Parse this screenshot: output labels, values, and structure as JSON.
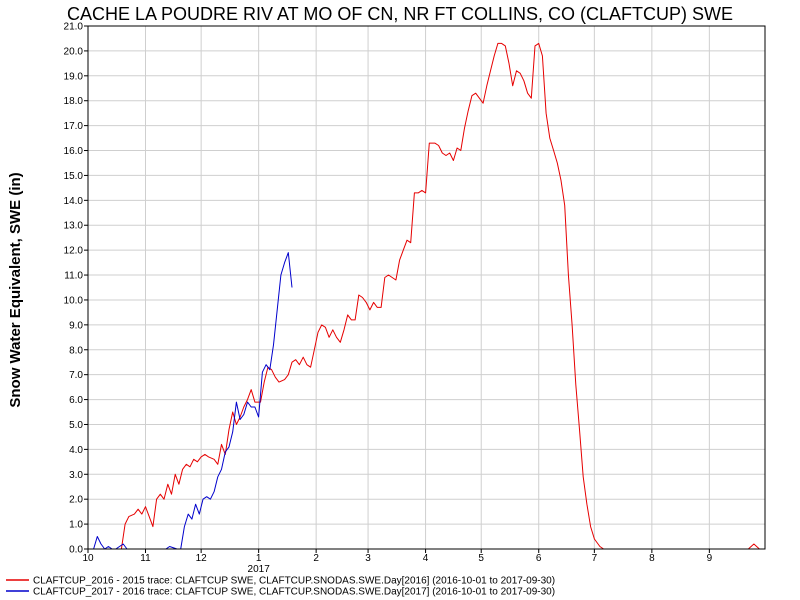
{
  "chart_data": {
    "type": "line",
    "title": "CACHE LA POUDRE RIV AT MO OF CN, NR FT COLLINS, CO (CLAFTCUP) SWE",
    "ylabel": "Snow Water Equivalent, SWE (in)",
    "xlabel": "",
    "xlim": [
      "2016-10-01",
      "2017-09-30"
    ],
    "ylim": [
      0,
      21
    ],
    "y_ticks": [
      "0.0",
      "1.0",
      "2.0",
      "3.0",
      "4.0",
      "5.0",
      "6.0",
      "7.0",
      "8.0",
      "9.0",
      "10.0",
      "11.0",
      "12.0",
      "13.0",
      "14.0",
      "15.0",
      "16.0",
      "17.0",
      "18.0",
      "19.0",
      "20.0",
      "21.0"
    ],
    "x_ticks": [
      {
        "date": "2016-10-01",
        "label": "10"
      },
      {
        "date": "2016-11-01",
        "label": "11"
      },
      {
        "date": "2016-12-01",
        "label": "12"
      },
      {
        "date": "2017-01-01",
        "label": "1"
      },
      {
        "date": "2017-02-01",
        "label": "2"
      },
      {
        "date": "2017-03-01",
        "label": "3"
      },
      {
        "date": "2017-04-01",
        "label": "4"
      },
      {
        "date": "2017-05-01",
        "label": "5"
      },
      {
        "date": "2017-06-01",
        "label": "6"
      },
      {
        "date": "2017-07-01",
        "label": "7"
      },
      {
        "date": "2017-08-01",
        "label": "8"
      },
      {
        "date": "2017-09-01",
        "label": "9"
      }
    ],
    "year_label": "2017",
    "grid": true,
    "legend_position": "bottom-left",
    "series": [
      {
        "name": "CLAFTCUP_2016 - 2015 trace: CLAFTCUP SWE, CLAFTCUP.SNODAS.SWE.Day[2016] (2016-10-01 to 2017-09-30)",
        "color": "#e60000",
        "points": [
          [
            "2016-10-01",
            0
          ],
          [
            "2016-10-19",
            0
          ],
          [
            "2016-10-21",
            1.0
          ],
          [
            "2016-10-23",
            1.3
          ],
          [
            "2016-10-26",
            1.4
          ],
          [
            "2016-10-28",
            1.6
          ],
          [
            "2016-10-30",
            1.4
          ],
          [
            "2016-11-01",
            1.7
          ],
          [
            "2016-11-03",
            1.3
          ],
          [
            "2016-11-05",
            0.9
          ],
          [
            "2016-11-07",
            2.0
          ],
          [
            "2016-11-09",
            2.2
          ],
          [
            "2016-11-11",
            2.0
          ],
          [
            "2016-11-13",
            2.6
          ],
          [
            "2016-11-15",
            2.2
          ],
          [
            "2016-11-17",
            3.0
          ],
          [
            "2016-11-19",
            2.6
          ],
          [
            "2016-11-21",
            3.2
          ],
          [
            "2016-11-23",
            3.4
          ],
          [
            "2016-11-25",
            3.3
          ],
          [
            "2016-11-27",
            3.6
          ],
          [
            "2016-11-29",
            3.5
          ],
          [
            "2016-12-01",
            3.7
          ],
          [
            "2016-12-03",
            3.8
          ],
          [
            "2016-12-05",
            3.7
          ],
          [
            "2016-12-08",
            3.6
          ],
          [
            "2016-12-10",
            3.4
          ],
          [
            "2016-12-12",
            4.2
          ],
          [
            "2016-12-14",
            3.8
          ],
          [
            "2016-12-16",
            4.8
          ],
          [
            "2016-12-18",
            5.5
          ],
          [
            "2016-12-20",
            5.0
          ],
          [
            "2016-12-22",
            5.3
          ],
          [
            "2016-12-24",
            5.7
          ],
          [
            "2016-12-26",
            6.0
          ],
          [
            "2016-12-28",
            6.4
          ],
          [
            "2016-12-30",
            5.9
          ],
          [
            "2017-01-02",
            5.9
          ],
          [
            "2017-01-04",
            6.7
          ],
          [
            "2017-01-06",
            7.3
          ],
          [
            "2017-01-08",
            7.2
          ],
          [
            "2017-01-10",
            6.9
          ],
          [
            "2017-01-12",
            6.7
          ],
          [
            "2017-01-15",
            6.8
          ],
          [
            "2017-01-17",
            7.0
          ],
          [
            "2017-01-19",
            7.5
          ],
          [
            "2017-01-21",
            7.6
          ],
          [
            "2017-01-23",
            7.4
          ],
          [
            "2017-01-25",
            7.7
          ],
          [
            "2017-01-27",
            7.4
          ],
          [
            "2017-01-29",
            7.3
          ],
          [
            "2017-01-31",
            8.0
          ],
          [
            "2017-02-02",
            8.7
          ],
          [
            "2017-02-04",
            9.0
          ],
          [
            "2017-02-06",
            8.9
          ],
          [
            "2017-02-08",
            8.5
          ],
          [
            "2017-02-10",
            8.8
          ],
          [
            "2017-02-12",
            8.5
          ],
          [
            "2017-02-14",
            8.3
          ],
          [
            "2017-02-16",
            8.8
          ],
          [
            "2017-02-18",
            9.4
          ],
          [
            "2017-02-20",
            9.2
          ],
          [
            "2017-02-22",
            9.2
          ],
          [
            "2017-02-24",
            10.2
          ],
          [
            "2017-02-26",
            10.1
          ],
          [
            "2017-02-28",
            9.9
          ],
          [
            "2017-03-02",
            9.6
          ],
          [
            "2017-03-04",
            9.9
          ],
          [
            "2017-03-06",
            9.7
          ],
          [
            "2017-03-08",
            9.7
          ],
          [
            "2017-03-10",
            10.9
          ],
          [
            "2017-03-12",
            11.0
          ],
          [
            "2017-03-14",
            10.9
          ],
          [
            "2017-03-16",
            10.8
          ],
          [
            "2017-03-18",
            11.6
          ],
          [
            "2017-03-20",
            12.0
          ],
          [
            "2017-03-22",
            12.4
          ],
          [
            "2017-03-24",
            12.3
          ],
          [
            "2017-03-26",
            14.3
          ],
          [
            "2017-03-28",
            14.3
          ],
          [
            "2017-03-30",
            14.4
          ],
          [
            "2017-04-01",
            14.3
          ],
          [
            "2017-04-03",
            16.3
          ],
          [
            "2017-04-06",
            16.3
          ],
          [
            "2017-04-08",
            16.2
          ],
          [
            "2017-04-10",
            15.9
          ],
          [
            "2017-04-12",
            15.8
          ],
          [
            "2017-04-14",
            15.9
          ],
          [
            "2017-04-16",
            15.6
          ],
          [
            "2017-04-18",
            16.1
          ],
          [
            "2017-04-20",
            16.0
          ],
          [
            "2017-04-22",
            16.9
          ],
          [
            "2017-04-24",
            17.6
          ],
          [
            "2017-04-26",
            18.2
          ],
          [
            "2017-04-28",
            18.3
          ],
          [
            "2017-04-30",
            18.1
          ],
          [
            "2017-05-02",
            17.9
          ],
          [
            "2017-05-04",
            18.6
          ],
          [
            "2017-05-06",
            19.2
          ],
          [
            "2017-05-08",
            19.8
          ],
          [
            "2017-05-10",
            20.3
          ],
          [
            "2017-05-12",
            20.3
          ],
          [
            "2017-05-14",
            20.2
          ],
          [
            "2017-05-16",
            19.5
          ],
          [
            "2017-05-18",
            18.6
          ],
          [
            "2017-05-20",
            19.2
          ],
          [
            "2017-05-22",
            19.1
          ],
          [
            "2017-05-24",
            18.8
          ],
          [
            "2017-05-26",
            18.3
          ],
          [
            "2017-05-28",
            18.1
          ],
          [
            "2017-05-30",
            20.2
          ],
          [
            "2017-06-01",
            20.3
          ],
          [
            "2017-06-03",
            19.8
          ],
          [
            "2017-06-05",
            17.5
          ],
          [
            "2017-06-07",
            16.5
          ],
          [
            "2017-06-09",
            16.0
          ],
          [
            "2017-06-11",
            15.5
          ],
          [
            "2017-06-13",
            14.8
          ],
          [
            "2017-06-15",
            13.8
          ],
          [
            "2017-06-17",
            11.0
          ],
          [
            "2017-06-19",
            9.0
          ],
          [
            "2017-06-21",
            6.6
          ],
          [
            "2017-06-23",
            4.8
          ],
          [
            "2017-06-25",
            2.9
          ],
          [
            "2017-06-27",
            1.8
          ],
          [
            "2017-06-29",
            0.9
          ],
          [
            "2017-07-01",
            0.4
          ],
          [
            "2017-07-04",
            0.1
          ],
          [
            "2017-07-06",
            0
          ],
          [
            "2017-09-22",
            0
          ],
          [
            "2017-09-25",
            0.2
          ],
          [
            "2017-09-28",
            0
          ]
        ]
      },
      {
        "name": "CLAFTCUP_2017 - 2016 trace: CLAFTCUP SWE, CLAFTCUP.SNODAS.SWE.Day[2017] (2016-10-01 to 2017-09-30)",
        "color": "#0000cc",
        "points": [
          [
            "2016-10-01",
            0
          ],
          [
            "2016-10-04",
            0
          ],
          [
            "2016-10-06",
            0.5
          ],
          [
            "2016-10-08",
            0.2
          ],
          [
            "2016-10-10",
            0
          ],
          [
            "2016-10-12",
            0.1
          ],
          [
            "2016-10-14",
            0
          ],
          [
            "2016-10-16",
            0
          ],
          [
            "2016-10-18",
            0.1
          ],
          [
            "2016-10-20",
            0.2
          ],
          [
            "2016-10-22",
            0
          ],
          [
            "2016-11-12",
            0
          ],
          [
            "2016-11-14",
            0.1
          ],
          [
            "2016-11-18",
            0
          ],
          [
            "2016-11-20",
            0
          ],
          [
            "2016-11-22",
            0.9
          ],
          [
            "2016-11-24",
            1.4
          ],
          [
            "2016-11-26",
            1.2
          ],
          [
            "2016-11-28",
            1.8
          ],
          [
            "2016-11-30",
            1.4
          ],
          [
            "2016-12-02",
            2.0
          ],
          [
            "2016-12-04",
            2.1
          ],
          [
            "2016-12-06",
            2.0
          ],
          [
            "2016-12-08",
            2.3
          ],
          [
            "2016-12-10",
            2.9
          ],
          [
            "2016-12-12",
            3.2
          ],
          [
            "2016-12-14",
            3.9
          ],
          [
            "2016-12-16",
            4.1
          ],
          [
            "2016-12-18",
            4.7
          ],
          [
            "2016-12-20",
            5.9
          ],
          [
            "2016-12-22",
            5.2
          ],
          [
            "2016-12-24",
            5.4
          ],
          [
            "2016-12-26",
            5.9
          ],
          [
            "2016-12-28",
            5.7
          ],
          [
            "2016-12-30",
            5.7
          ],
          [
            "2017-01-01",
            5.3
          ],
          [
            "2017-01-03",
            7.1
          ],
          [
            "2017-01-05",
            7.4
          ],
          [
            "2017-01-07",
            7.2
          ],
          [
            "2017-01-09",
            8.2
          ],
          [
            "2017-01-11",
            9.6
          ],
          [
            "2017-01-13",
            11.0
          ],
          [
            "2017-01-15",
            11.5
          ],
          [
            "2017-01-17",
            11.9
          ],
          [
            "2017-01-19",
            10.5
          ]
        ]
      }
    ]
  }
}
